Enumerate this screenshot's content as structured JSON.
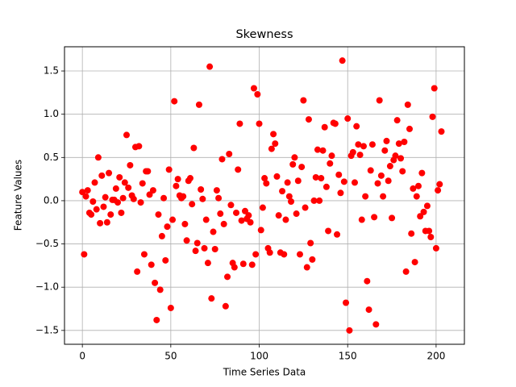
{
  "chart_data": {
    "type": "scatter",
    "title": "Skewness",
    "x_label": "Time Series Data",
    "y_label": "Feature Values",
    "grid": true,
    "color": "#ff0000",
    "xlim": [
      -10.1,
      216
    ],
    "ylim": [
      -1.66,
      1.78
    ],
    "xticks": [
      0,
      50,
      100,
      150,
      200
    ],
    "yticks": [
      {
        "value": -1.5,
        "label": "−1.5"
      },
      {
        "value": -1.0,
        "label": "−1.0"
      },
      {
        "value": -0.5,
        "label": "−0.5"
      },
      {
        "value": 0,
        "label": "0.0"
      },
      0.5,
      {
        "value": 1.0,
        "label": "1.0"
      },
      1.5
    ],
    "x": [
      0,
      1,
      2,
      3,
      4,
      5,
      6,
      7,
      8,
      9,
      10,
      11,
      12,
      13,
      14,
      15,
      16,
      17,
      18,
      19,
      20,
      21,
      22,
      23,
      24,
      25,
      26,
      27,
      28,
      29,
      30,
      31,
      32,
      33,
      34,
      35,
      36,
      37,
      38,
      39,
      40,
      41,
      42,
      43,
      44,
      45,
      46,
      47,
      48,
      49,
      50,
      51,
      52,
      53,
      54,
      55,
      56,
      57,
      58,
      59,
      60,
      61,
      62,
      63,
      64,
      65,
      66,
      67,
      68,
      69,
      70,
      71,
      72,
      73,
      74,
      75,
      76,
      77,
      78,
      79,
      80,
      81,
      82,
      83,
      84,
      85,
      86,
      87,
      88,
      89,
      90,
      91,
      92,
      93,
      94,
      95,
      96,
      97,
      98,
      99,
      100,
      101,
      102,
      103,
      104,
      105,
      106,
      107,
      108,
      109,
      110,
      111,
      112,
      113,
      114,
      115,
      116,
      117,
      118,
      119,
      120,
      121,
      122,
      123,
      124,
      125,
      126,
      127,
      128,
      129,
      130,
      131,
      132,
      133,
      134,
      135,
      136,
      137,
      138,
      139,
      140,
      141,
      142,
      143,
      144,
      145,
      146,
      147,
      148,
      149,
      150,
      151,
      152,
      153,
      154,
      155,
      156,
      157,
      158,
      159,
      160,
      161,
      162,
      163,
      164,
      165,
      166,
      167,
      168,
      169,
      170,
      171,
      172,
      173,
      174,
      175,
      176,
      177,
      178,
      179,
      180,
      181,
      182,
      183,
      184,
      185,
      186,
      187,
      188,
      189,
      190,
      191,
      192,
      193,
      194,
      195,
      196,
      197,
      198,
      199,
      200,
      201,
      202,
      203
    ],
    "values": [
      0.1,
      -0.62,
      0.05,
      0.12,
      -0.14,
      -0.16,
      -0.01,
      0.21,
      -0.1,
      0.5,
      -0.26,
      0.29,
      -0.07,
      0.04,
      -0.25,
      0.32,
      -0.16,
      0.01,
      0.01,
      0.14,
      -0.02,
      0.27,
      -0.14,
      0.03,
      0.21,
      0.76,
      0.15,
      0.41,
      0.06,
      0.02,
      0.62,
      -0.82,
      0.63,
      -0.02,
      0.2,
      -0.62,
      0.34,
      0.34,
      0.07,
      -0.74,
      0.12,
      -0.95,
      -1.38,
      -0.16,
      -1.03,
      -0.41,
      0.03,
      -0.69,
      -0.3,
      0.36,
      -1.24,
      -0.22,
      1.15,
      0.17,
      0.25,
      0.06,
      0.03,
      0.05,
      -0.27,
      -0.46,
      0.23,
      0.26,
      -0.04,
      0.61,
      -0.58,
      -0.49,
      1.11,
      0.13,
      0.02,
      -0.55,
      -0.22,
      -0.72,
      1.55,
      -1.13,
      -0.36,
      -0.56,
      0.12,
      0.03,
      -0.15,
      0.48,
      -0.27,
      -1.22,
      -0.88,
      0.54,
      -0.05,
      -0.72,
      -0.77,
      -0.14,
      0.36,
      0.89,
      -0.23,
      -0.73,
      -0.12,
      -0.21,
      -0.17,
      -0.25,
      -0.74,
      1.3,
      -0.62,
      1.23,
      0.89,
      -0.34,
      -0.08,
      0.26,
      0.2,
      -0.55,
      -0.6,
      0.6,
      0.77,
      0.66,
      0.28,
      -0.17,
      -0.6,
      0.11,
      -0.62,
      -0.22,
      0.21,
      0.05,
      -0.01,
      0.42,
      0.5,
      -0.15,
      0.23,
      -0.62,
      0.39,
      1.16,
      -0.08,
      -0.77,
      0.94,
      -0.49,
      -0.68,
      0.0,
      0.27,
      0.59,
      0.0,
      0.26,
      0.58,
      0.85,
      0.16,
      -0.35,
      0.43,
      0.52,
      0.9,
      0.89,
      -0.39,
      0.3,
      0.09,
      1.62,
      0.22,
      -1.18,
      0.95,
      -1.5,
      0.52,
      0.56,
      0.21,
      0.86,
      0.65,
      0.53,
      -0.22,
      0.63,
      0.05,
      -0.93,
      -1.26,
      0.35,
      0.65,
      -0.19,
      -1.43,
      0.2,
      1.16,
      0.29,
      0.05,
      0.58,
      0.69,
      0.23,
      0.4,
      -0.2,
      0.47,
      0.52,
      0.93,
      0.66,
      0.49,
      0.34,
      0.68,
      -0.82,
      1.11,
      0.83,
      -0.38,
      0.14,
      -0.71,
      0.05,
      0.17,
      -0.18,
      0.32,
      -0.13,
      -0.35,
      -0.06,
      -0.35,
      -0.42,
      0.97,
      1.3,
      -0.55,
      0.12,
      0.19,
      0.8
    ]
  }
}
